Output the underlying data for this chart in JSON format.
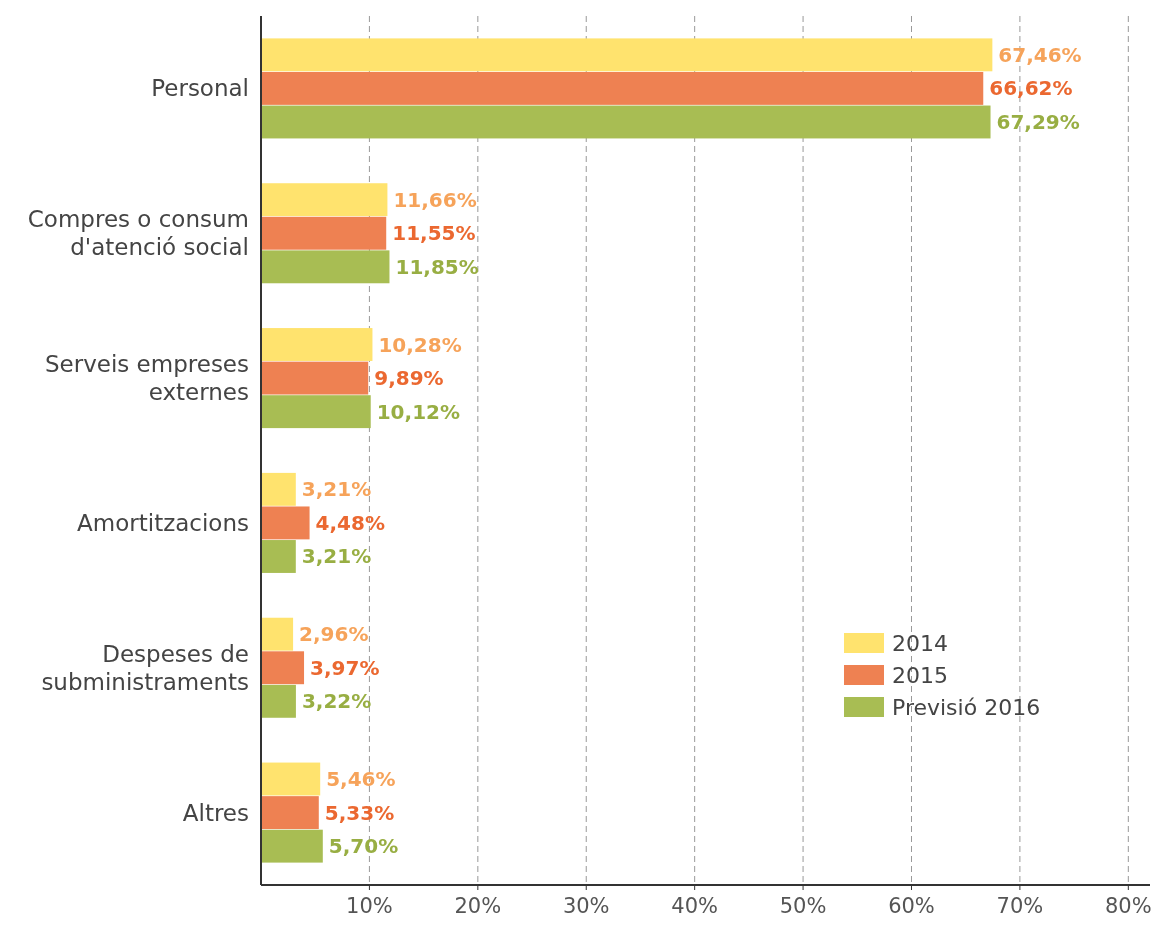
{
  "chart_data": {
    "type": "bar",
    "orientation": "horizontal",
    "categories": [
      "Personal",
      "Compres o consum d'atenció social",
      "Serveis empreses externes",
      "Amortitzacions",
      "Despeses de subministraments",
      "Altres"
    ],
    "series": [
      {
        "name": "2014",
        "color": "#ffe36e",
        "values": [
          67.46,
          11.66,
          10.28,
          3.21,
          2.96,
          5.46
        ],
        "value_labels": [
          "67,46%",
          "11,66%",
          "10,28%",
          "3,21%",
          "2,96%",
          "5,46%"
        ]
      },
      {
        "name": "2015",
        "color": "#ee8152",
        "values": [
          66.62,
          11.55,
          9.89,
          4.48,
          3.97,
          5.33
        ],
        "value_labels": [
          "66,62%",
          "11,55%",
          "9,89%",
          "4,48%",
          "3,97%",
          "5,33%"
        ]
      },
      {
        "name": "Previsió 2016",
        "color": "#a8bd53",
        "values": [
          67.29,
          11.85,
          10.12,
          3.21,
          3.22,
          5.7
        ],
        "value_labels": [
          "67,29%",
          "11,85%",
          "10,12%",
          "3,21%",
          "3,22%",
          "5,70%"
        ]
      }
    ],
    "xlim": [
      0,
      82
    ],
    "xticks": [
      {
        "value": 10,
        "label": "10%"
      },
      {
        "value": 20,
        "label": "20%"
      },
      {
        "value": 30,
        "label": "30%"
      },
      {
        "value": 40,
        "label": "40%"
      },
      {
        "value": 50,
        "label": "50%"
      },
      {
        "value": 60,
        "label": "60%"
      },
      {
        "value": 70,
        "label": "70%"
      },
      {
        "value": 80,
        "label": "80%"
      }
    ],
    "grid": "x",
    "legend": "bottom right"
  }
}
